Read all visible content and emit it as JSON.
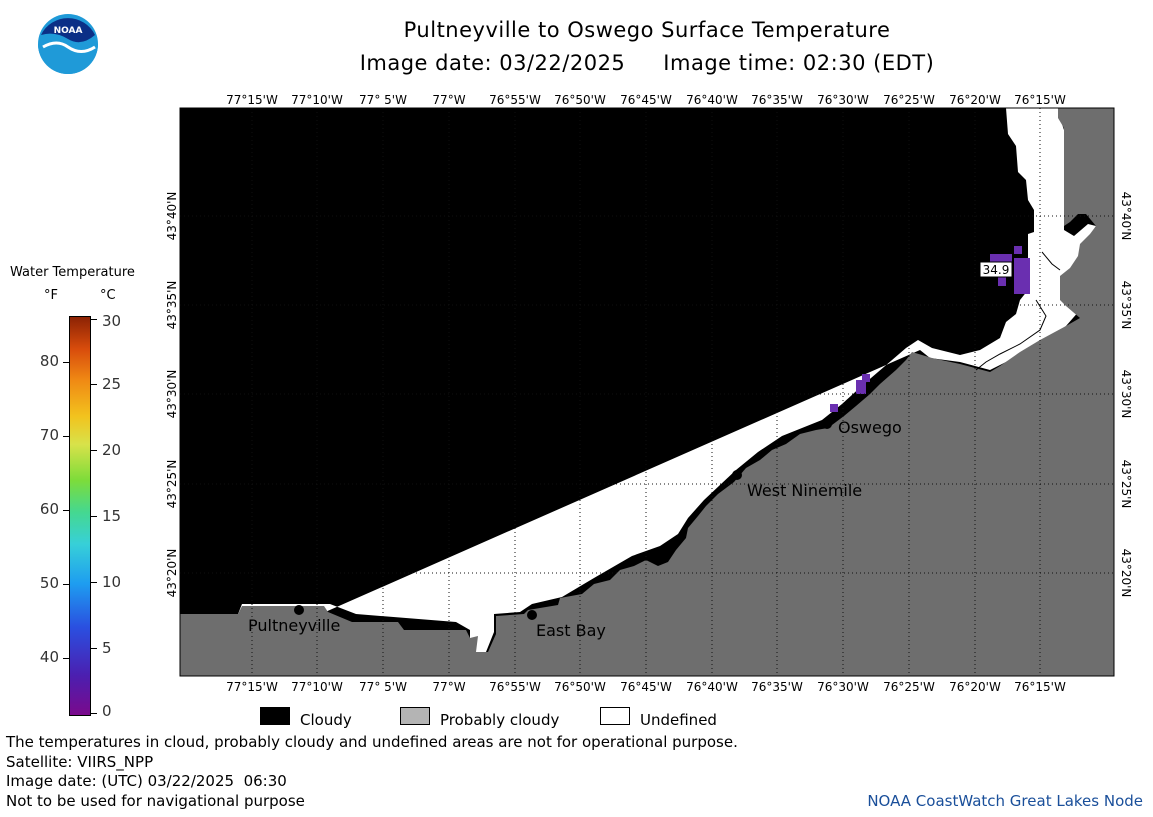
{
  "header": {
    "title": "Pultneyville to Oswego Surface Temperature",
    "image_date_label": "Image date: 03/22/2025",
    "image_time_label": "Image time: 02:30 (EDT)"
  },
  "logo": {
    "text": "NOAA"
  },
  "map": {
    "lon_labels": [
      "77°15'W",
      "77°10'W",
      "77° 5'W",
      "77°W",
      "76°55'W",
      "76°50'W",
      "76°45'W",
      "76°40'W",
      "76°35'W",
      "76°30'W",
      "76°25'W",
      "76°20'W",
      "76°15'W"
    ],
    "lat_labels": [
      "43°40'N",
      "43°35'N",
      "43°30'N",
      "43°25'N",
      "43°20'N"
    ],
    "places": [
      {
        "name": "Pultneyville"
      },
      {
        "name": "East Bay"
      },
      {
        "name": "West Ninemile"
      },
      {
        "name": "Oswego"
      }
    ],
    "temperature_readout": "34.9",
    "colors": {
      "cloudy": "#000000",
      "probably_cloudy": "#6e6e6e",
      "undefined": "#ffffff",
      "water_purple": "#6a2fb0"
    }
  },
  "colorbar": {
    "title": "Water Temperature",
    "unit_f": "°F",
    "unit_c": "°C",
    "f_ticks": [
      "80",
      "70",
      "60",
      "50",
      "40"
    ],
    "c_ticks": [
      "30",
      "25",
      "20",
      "15",
      "10",
      "5",
      "0"
    ]
  },
  "legend": {
    "cloudy": "Cloudy",
    "probably_cloudy": "Probably cloudy",
    "undefined": "Undefined"
  },
  "notes": {
    "disclaimer": "The temperatures in cloud, probably cloudy and undefined areas are not for operational purpose.",
    "satellite": "Satellite: VIIRS_NPP",
    "utc_date": "Image date: (UTC) 03/22/2025  06:30",
    "navigation": "Not to be used for navigational purpose",
    "credit": "NOAA CoastWatch Great Lakes Node"
  }
}
